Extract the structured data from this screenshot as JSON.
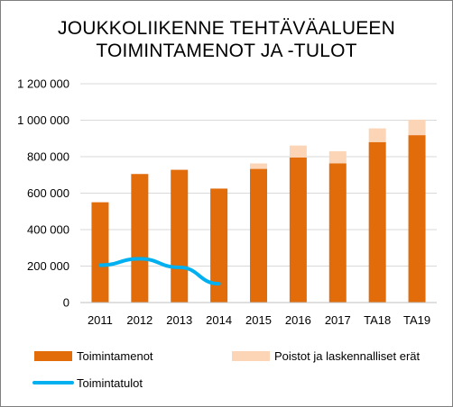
{
  "colors": {
    "toimintamenot": "#E26B0A",
    "poistot": "#FBD5B5",
    "toimintatulot": "#00B0F0",
    "gridline": "#D9D9D9",
    "axis": "#BFBFBF"
  },
  "chart_data": {
    "type": "bar",
    "title_lines": [
      "JOUKKOLIIKENNE TEHTÄVÄALUEEN",
      "TOIMINTAMENOT  JA -TULOT"
    ],
    "xlabel": "",
    "ylabel": "",
    "categories": [
      "2011",
      "2012",
      "2013",
      "2014",
      "2015",
      "2016",
      "2017",
      "TA18",
      "TA19"
    ],
    "ylim": [
      0,
      1200000
    ],
    "yticks": [
      0,
      200000,
      400000,
      600000,
      800000,
      1000000,
      1200000
    ],
    "ytick_labels": [
      "0",
      "200 000",
      "400 000",
      "600 000",
      "800 000",
      "1 000 000",
      "1 200 000"
    ],
    "stacked": true,
    "grid": true,
    "legend_position": "bottom",
    "series": [
      {
        "name": "Toimintamenot",
        "kind": "bar",
        "color_key": "toimintamenot",
        "values": [
          550000,
          705000,
          728000,
          625000,
          733000,
          796000,
          763000,
          880000,
          918000
        ]
      },
      {
        "name": "Poistot ja laskennalliset erät",
        "kind": "bar",
        "color_key": "poistot",
        "values": [
          0,
          0,
          0,
          0,
          30000,
          65000,
          67000,
          75000,
          85000
        ]
      },
      {
        "name": "Toimintatulot",
        "kind": "line",
        "color_key": "toimintatulot",
        "values": [
          205000,
          240000,
          193000,
          103000,
          null,
          null,
          null,
          null,
          null
        ]
      }
    ]
  }
}
